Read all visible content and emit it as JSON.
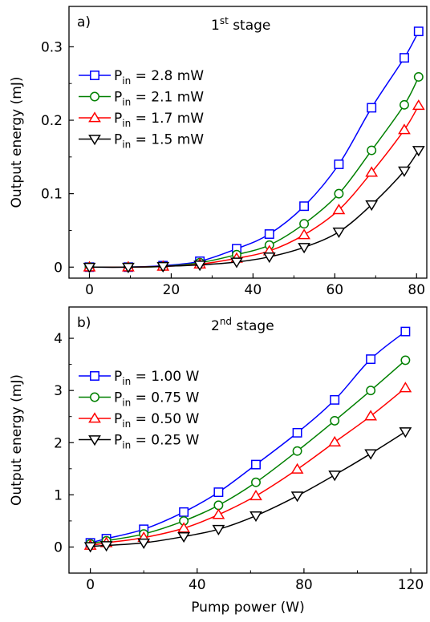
{
  "chart_data": [
    {
      "type": "line",
      "panel_label": "a)",
      "title": "1",
      "title_sup": "st",
      "title_suffix": " stage",
      "xlabel": "",
      "ylabel": "Output energy (mJ)",
      "xlim": [
        -5,
        82.5
      ],
      "ylim": [
        -0.015,
        0.355
      ],
      "xticks": [
        0,
        20,
        40,
        60,
        80
      ],
      "yticks": [
        0,
        0.1,
        0.2,
        0.3
      ],
      "xtick_labels": [
        "0",
        "20",
        "40",
        "60",
        "80"
      ],
      "ytick_labels": [
        "0",
        "0.1",
        "0.2",
        "0.3"
      ],
      "legend_loc": "upper-left",
      "x": [
        0,
        9.5,
        18,
        27,
        36,
        44,
        52.5,
        61,
        69,
        77,
        80.5
      ],
      "series": [
        {
          "label_main": "P",
          "label_sub": "in",
          "label_rest": " = 2.8 mW",
          "color": "#0000ff",
          "marker": "square",
          "values": [
            0,
            0,
            0.002,
            0.008,
            0.025,
            0.045,
            0.083,
            0.14,
            0.217,
            0.285,
            0.321
          ]
        },
        {
          "label_main": "P",
          "label_sub": "in",
          "label_rest": " = 2.1 mW",
          "color": "#008000",
          "marker": "circle",
          "values": [
            0,
            0,
            0.001,
            0.006,
            0.017,
            0.03,
            0.059,
            0.1,
            0.159,
            0.221,
            0.259
          ]
        },
        {
          "label_main": "P",
          "label_sub": "in",
          "label_rest": " = 1.7 mW",
          "color": "#ff0000",
          "marker": "triangle-up",
          "values": [
            0,
            0,
            0.001,
            0.004,
            0.012,
            0.022,
            0.044,
            0.078,
            0.129,
            0.187,
            0.22
          ]
        },
        {
          "label_main": "P",
          "label_sub": "in",
          "label_rest": " = 1.5 mW",
          "color": "#000000",
          "marker": "triangle-down",
          "values": [
            0,
            0,
            0.001,
            0.003,
            0.007,
            0.014,
            0.027,
            0.048,
            0.085,
            0.131,
            0.159
          ]
        }
      ]
    },
    {
      "type": "line",
      "panel_label": "b)",
      "title": "2",
      "title_sup": "nd",
      "title_suffix": " stage",
      "xlabel": "Pump power (W)",
      "ylabel": "Output energy (mJ)",
      "xlim": [
        -8,
        126
      ],
      "ylim": [
        -0.5,
        4.6
      ],
      "xticks": [
        0,
        40,
        80,
        120
      ],
      "yticks": [
        0,
        1,
        2,
        3,
        4
      ],
      "xtick_labels": [
        "0",
        "40",
        "80",
        "120"
      ],
      "ytick_labels": [
        "0",
        "1",
        "2",
        "3",
        "4"
      ],
      "legend_loc": "upper-left",
      "x": [
        0,
        6,
        20,
        35,
        48,
        62,
        77.5,
        91.5,
        105,
        118
      ],
      "series": [
        {
          "label_main": "P",
          "label_sub": "in",
          "label_rest": " = 1.00 W",
          "color": "#0000ff",
          "marker": "square",
          "values": [
            0.08,
            0.16,
            0.34,
            0.67,
            1.05,
            1.58,
            2.19,
            2.82,
            3.6,
            4.13
          ]
        },
        {
          "label_main": "P",
          "label_sub": "in",
          "label_rest": " = 0.75 W",
          "color": "#008000",
          "marker": "circle",
          "values": [
            0.06,
            0.12,
            0.25,
            0.5,
            0.8,
            1.24,
            1.84,
            2.42,
            3.0,
            3.58
          ]
        },
        {
          "label_main": "P",
          "label_sub": "in",
          "label_rest": " = 0.50 W",
          "color": "#ff0000",
          "marker": "triangle-up",
          "values": [
            0.03,
            0.08,
            0.18,
            0.36,
            0.62,
            0.98,
            1.49,
            2.01,
            2.51,
            3.05
          ]
        },
        {
          "label_main": "P",
          "label_sub": "in",
          "label_rest": " = 0.25 W",
          "color": "#000000",
          "marker": "triangle-down",
          "values": [
            0.01,
            0.03,
            0.08,
            0.2,
            0.34,
            0.6,
            0.98,
            1.38,
            1.79,
            2.21
          ]
        }
      ]
    }
  ]
}
